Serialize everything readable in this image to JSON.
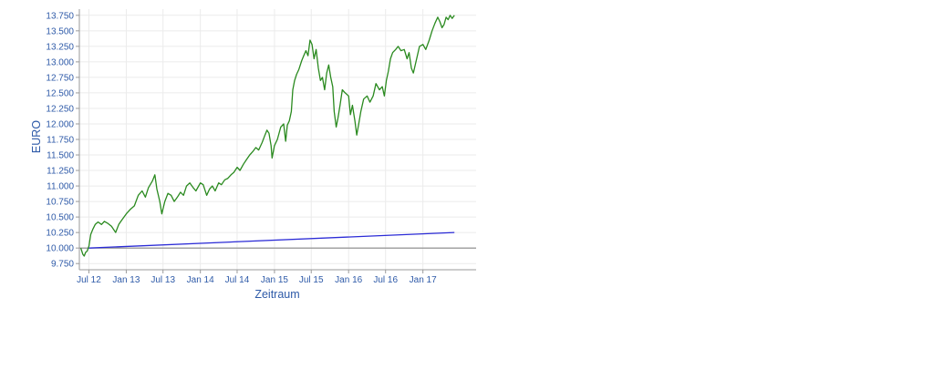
{
  "chart_data": {
    "type": "line",
    "title": "",
    "xlabel": "Zeitraum",
    "ylabel": "EURO",
    "ylim": [
      9.65,
      13.85
    ],
    "y_ticks": [
      9.75,
      10.0,
      10.25,
      10.5,
      10.75,
      11.0,
      11.25,
      11.5,
      11.75,
      12.0,
      12.25,
      12.5,
      12.75,
      13.0,
      13.25,
      13.5,
      13.75
    ],
    "y_tick_labels": [
      "9.750",
      "10.000",
      "10.250",
      "10.500",
      "10.750",
      "11.000",
      "11.250",
      "11.500",
      "11.750",
      "12.000",
      "12.250",
      "12.500",
      "12.750",
      "13.000",
      "13.250",
      "13.500",
      "13.750"
    ],
    "xlim": [
      "2012-05-15",
      "2017-09-20"
    ],
    "x_ticks": [
      "2012-07-01",
      "2013-01-01",
      "2013-07-01",
      "2014-01-01",
      "2014-07-01",
      "2015-01-01",
      "2015-07-01",
      "2016-01-01",
      "2016-07-01",
      "2017-01-01"
    ],
    "x_tick_labels": [
      "Jul 12",
      "Jan 13",
      "Jul 13",
      "Jan 14",
      "Jul 14",
      "Jan 15",
      "Jul 15",
      "Jan 16",
      "Jul 16",
      "Jan 17"
    ],
    "grid": true,
    "reference_line": {
      "value": 10.0,
      "color": "#888888"
    },
    "series": [
      {
        "color": "#2a8a1f",
        "points": [
          [
            "2012-05-22",
            10.0
          ],
          [
            "2012-06-01",
            9.9
          ],
          [
            "2012-06-08",
            9.87
          ],
          [
            "2012-06-15",
            9.93
          ],
          [
            "2012-06-22",
            9.95
          ],
          [
            "2012-07-01",
            10.03
          ],
          [
            "2012-07-10",
            10.22
          ],
          [
            "2012-07-20",
            10.3
          ],
          [
            "2012-08-01",
            10.38
          ],
          [
            "2012-08-15",
            10.42
          ],
          [
            "2012-09-01",
            10.38
          ],
          [
            "2012-09-15",
            10.43
          ],
          [
            "2012-10-01",
            10.4
          ],
          [
            "2012-10-20",
            10.35
          ],
          [
            "2012-11-10",
            10.25
          ],
          [
            "2012-11-25",
            10.38
          ],
          [
            "2012-12-10",
            10.45
          ],
          [
            "2013-01-01",
            10.55
          ],
          [
            "2013-01-20",
            10.62
          ],
          [
            "2013-02-10",
            10.68
          ],
          [
            "2013-03-01",
            10.85
          ],
          [
            "2013-03-20",
            10.92
          ],
          [
            "2013-04-05",
            10.82
          ],
          [
            "2013-04-20",
            10.97
          ],
          [
            "2013-05-10",
            11.08
          ],
          [
            "2013-05-22",
            11.18
          ],
          [
            "2013-06-01",
            10.95
          ],
          [
            "2013-06-15",
            10.75
          ],
          [
            "2013-06-25",
            10.55
          ],
          [
            "2013-07-10",
            10.75
          ],
          [
            "2013-07-25",
            10.88
          ],
          [
            "2013-08-10",
            10.85
          ],
          [
            "2013-08-25",
            10.75
          ],
          [
            "2013-09-10",
            10.82
          ],
          [
            "2013-09-25",
            10.9
          ],
          [
            "2013-10-10",
            10.85
          ],
          [
            "2013-10-25",
            11.0
          ],
          [
            "2013-11-10",
            11.05
          ],
          [
            "2013-11-25",
            10.98
          ],
          [
            "2013-12-10",
            10.92
          ],
          [
            "2014-01-01",
            11.05
          ],
          [
            "2014-01-15",
            11.02
          ],
          [
            "2014-02-01",
            10.85
          ],
          [
            "2014-02-15",
            10.95
          ],
          [
            "2014-03-01",
            11.0
          ],
          [
            "2014-03-15",
            10.92
          ],
          [
            "2014-04-01",
            11.05
          ],
          [
            "2014-04-15",
            11.02
          ],
          [
            "2014-05-01",
            11.1
          ],
          [
            "2014-05-15",
            11.12
          ],
          [
            "2014-06-01",
            11.18
          ],
          [
            "2014-06-15",
            11.22
          ],
          [
            "2014-07-01",
            11.3
          ],
          [
            "2014-07-15",
            11.25
          ],
          [
            "2014-08-01",
            11.35
          ],
          [
            "2014-08-15",
            11.42
          ],
          [
            "2014-09-01",
            11.5
          ],
          [
            "2014-09-15",
            11.55
          ],
          [
            "2014-10-01",
            11.62
          ],
          [
            "2014-10-15",
            11.58
          ],
          [
            "2014-11-01",
            11.7
          ],
          [
            "2014-11-15",
            11.82
          ],
          [
            "2014-11-25",
            11.9
          ],
          [
            "2014-12-05",
            11.85
          ],
          [
            "2014-12-15",
            11.65
          ],
          [
            "2014-12-20",
            11.45
          ],
          [
            "2015-01-01",
            11.65
          ],
          [
            "2015-01-15",
            11.75
          ],
          [
            "2015-02-01",
            11.95
          ],
          [
            "2015-02-15",
            12.0
          ],
          [
            "2015-02-25",
            11.72
          ],
          [
            "2015-03-05",
            11.98
          ],
          [
            "2015-03-15",
            12.05
          ],
          [
            "2015-03-25",
            12.2
          ],
          [
            "2015-04-01",
            12.55
          ],
          [
            "2015-04-10",
            12.7
          ],
          [
            "2015-04-20",
            12.8
          ],
          [
            "2015-05-01",
            12.88
          ],
          [
            "2015-05-15",
            13.02
          ],
          [
            "2015-05-25",
            13.1
          ],
          [
            "2015-06-05",
            13.18
          ],
          [
            "2015-06-15",
            13.1
          ],
          [
            "2015-06-25",
            13.35
          ],
          [
            "2015-07-05",
            13.28
          ],
          [
            "2015-07-15",
            13.05
          ],
          [
            "2015-07-25",
            13.2
          ],
          [
            "2015-08-05",
            12.9
          ],
          [
            "2015-08-15",
            12.7
          ],
          [
            "2015-08-25",
            12.75
          ],
          [
            "2015-09-05",
            12.55
          ],
          [
            "2015-09-15",
            12.82
          ],
          [
            "2015-09-25",
            12.95
          ],
          [
            "2015-10-05",
            12.75
          ],
          [
            "2015-10-15",
            12.6
          ],
          [
            "2015-10-22",
            12.2
          ],
          [
            "2015-11-01",
            11.95
          ],
          [
            "2015-11-10",
            12.1
          ],
          [
            "2015-11-20",
            12.3
          ],
          [
            "2015-12-01",
            12.55
          ],
          [
            "2015-12-15",
            12.5
          ],
          [
            "2016-01-01",
            12.45
          ],
          [
            "2016-01-10",
            12.15
          ],
          [
            "2016-01-20",
            12.3
          ],
          [
            "2016-02-01",
            12.05
          ],
          [
            "2016-02-10",
            11.82
          ],
          [
            "2016-02-20",
            12.0
          ],
          [
            "2016-03-01",
            12.2
          ],
          [
            "2016-03-15",
            12.4
          ],
          [
            "2016-04-01",
            12.45
          ],
          [
            "2016-04-15",
            12.35
          ],
          [
            "2016-05-01",
            12.45
          ],
          [
            "2016-05-15",
            12.65
          ],
          [
            "2016-06-01",
            12.55
          ],
          [
            "2016-06-15",
            12.6
          ],
          [
            "2016-06-25",
            12.45
          ],
          [
            "2016-07-05",
            12.7
          ],
          [
            "2016-07-15",
            12.85
          ],
          [
            "2016-07-25",
            13.05
          ],
          [
            "2016-08-05",
            13.15
          ],
          [
            "2016-08-20",
            13.2
          ],
          [
            "2016-09-01",
            13.25
          ],
          [
            "2016-09-15",
            13.18
          ],
          [
            "2016-10-01",
            13.2
          ],
          [
            "2016-10-15",
            13.05
          ],
          [
            "2016-10-25",
            13.15
          ],
          [
            "2016-11-05",
            12.9
          ],
          [
            "2016-11-15",
            12.82
          ],
          [
            "2016-12-01",
            13.05
          ],
          [
            "2016-12-15",
            13.25
          ],
          [
            "2017-01-01",
            13.28
          ],
          [
            "2017-01-15",
            13.2
          ],
          [
            "2017-02-01",
            13.35
          ],
          [
            "2017-02-15",
            13.5
          ],
          [
            "2017-03-01",
            13.62
          ],
          [
            "2017-03-15",
            13.72
          ],
          [
            "2017-03-25",
            13.65
          ],
          [
            "2017-04-05",
            13.55
          ],
          [
            "2017-04-15",
            13.6
          ],
          [
            "2017-04-25",
            13.72
          ],
          [
            "2017-05-05",
            13.68
          ],
          [
            "2017-05-15",
            13.75
          ],
          [
            "2017-05-25",
            13.7
          ],
          [
            "2017-06-05",
            13.75
          ]
        ]
      },
      {
        "color": "#2b2bd6",
        "points": [
          [
            "2012-07-01",
            10.0
          ],
          [
            "2017-06-05",
            10.25
          ]
        ]
      }
    ]
  }
}
